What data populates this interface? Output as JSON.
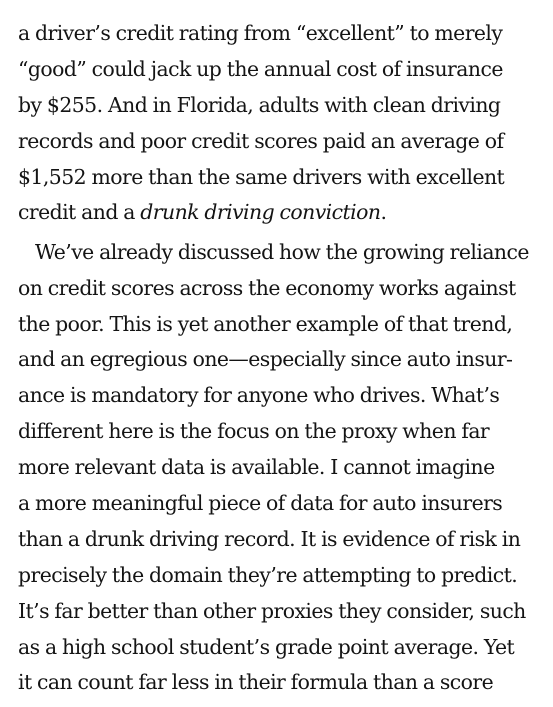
{
  "paragraphs": [
    {
      "lines": [
        {
          "text": "a driver’s credit rating from “excellent” to merely"
        },
        {
          "text": "“good” could jack up the annual cost of insurance"
        },
        {
          "text": "by $255. And in Florida, adults with clean driving"
        },
        {
          "text": "records and poor credit scores paid an average of"
        },
        {
          "text": "$1,552 more than the same drivers with excellent"
        },
        {
          "text": "credit and a ",
          "italic": "drunk driving conviction",
          "after": "."
        }
      ]
    },
    {
      "lines": [
        {
          "text": "We’ve already discussed how the growing reliance"
        },
        {
          "text": "on credit scores across the economy works against"
        },
        {
          "text": "the poor. This is yet another example of that trend,"
        },
        {
          "text": "and an egregious one—especially since auto insur-"
        },
        {
          "text": "ance is mandatory for anyone who drives. What’s"
        },
        {
          "text": "different here is the focus on the proxy when far"
        },
        {
          "text": "more relevant data is available. I cannot imagine"
        },
        {
          "text": "a more meaningful piece of data for auto insurers"
        },
        {
          "text": "than a drunk driving record. It is evidence of risk in"
        },
        {
          "text": "precisely the domain they’re attempting to predict."
        },
        {
          "text": "It’s far better than other proxies they consider, such"
        },
        {
          "text": "as a high school student’s grade point average. Yet"
        },
        {
          "text": "it can count far less in their formula than a score"
        }
      ]
    }
  ]
}
